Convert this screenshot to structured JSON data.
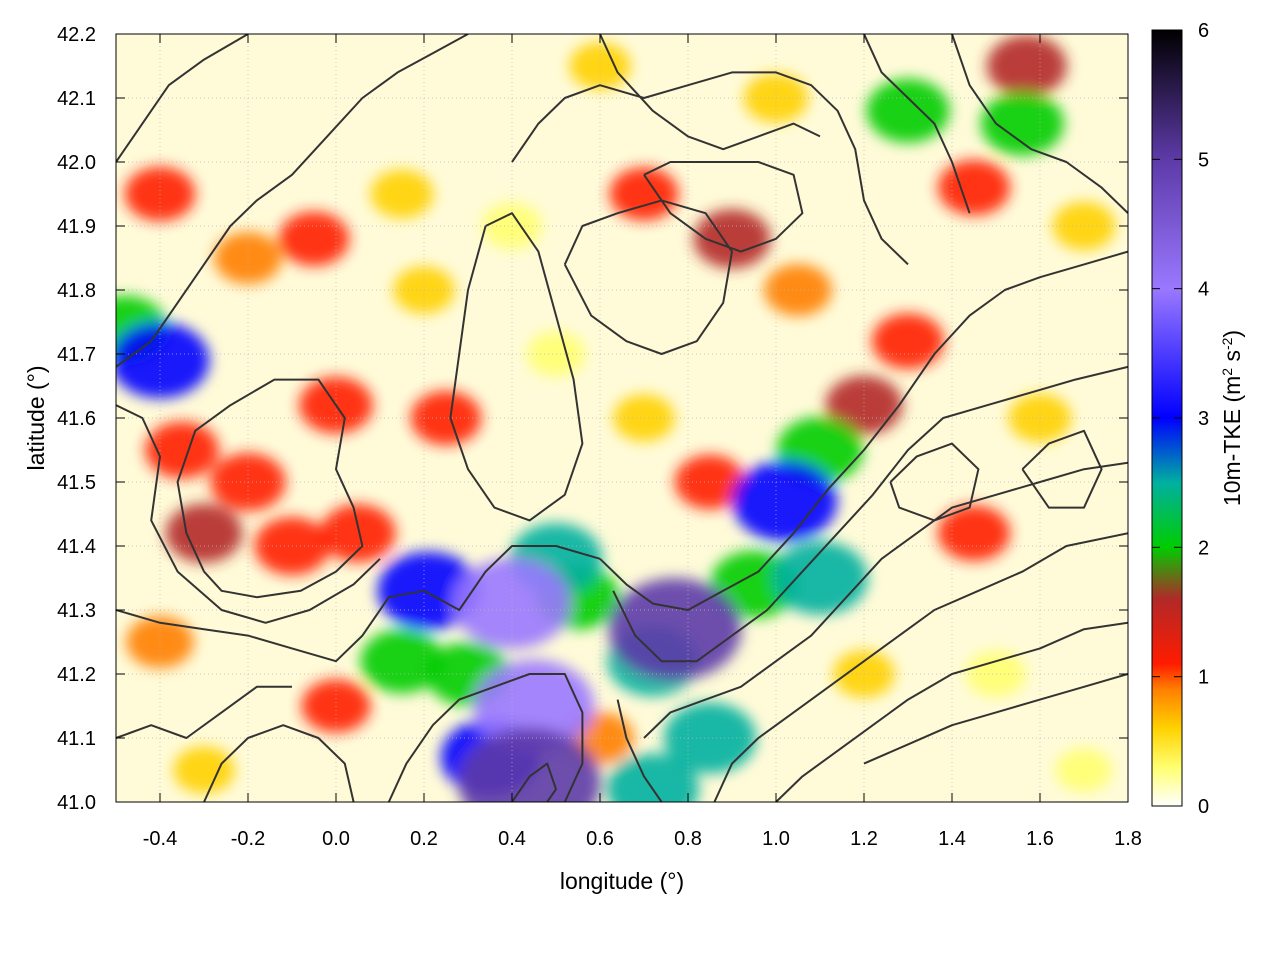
{
  "chart_data": {
    "type": "heatmap",
    "title": "",
    "xlabel": "longitude (°)",
    "ylabel": "latitude (°)",
    "xlim": [
      -0.5,
      1.8
    ],
    "ylim": [
      41.0,
      42.2
    ],
    "x_ticks": [
      "-0.4",
      "-0.2",
      "0.0",
      "0.2",
      "0.4",
      "0.6",
      "0.8",
      "1.0",
      "1.2",
      "1.4",
      "1.6",
      "1.8"
    ],
    "y_ticks": [
      "41.0",
      "41.1",
      "41.2",
      "41.3",
      "41.4",
      "41.5",
      "41.6",
      "41.7",
      "41.8",
      "41.9",
      "42.0",
      "42.1",
      "42.2"
    ],
    "grid": true,
    "colorbar": {
      "label_prefix": "10m-TKE (m",
      "label_sup1": "2",
      "label_mid": " s",
      "label_sup2": "-2",
      "label_suffix": ")",
      "range": [
        0,
        6
      ],
      "ticks": [
        "0",
        "1",
        "2",
        "3",
        "4",
        "5",
        "6"
      ],
      "palette": [
        {
          "value": 0.0,
          "color": "#ffffff"
        },
        {
          "value": 0.3,
          "color": "#ffff70"
        },
        {
          "value": 0.6,
          "color": "#ffd200"
        },
        {
          "value": 0.9,
          "color": "#ff8000"
        },
        {
          "value": 1.1,
          "color": "#ff1c00"
        },
        {
          "value": 1.6,
          "color": "#b22828"
        },
        {
          "value": 2.0,
          "color": "#00cc00"
        },
        {
          "value": 2.5,
          "color": "#00b0a0"
        },
        {
          "value": 3.0,
          "color": "#0000ff"
        },
        {
          "value": 4.0,
          "color": "#9a78ff"
        },
        {
          "value": 5.0,
          "color": "#5d3aa8"
        },
        {
          "value": 6.0,
          "color": "#000000"
        }
      ]
    },
    "features": [
      {
        "x": 0.44,
        "y": 41.03,
        "v": 5.8
      },
      {
        "x": 0.77,
        "y": 41.27,
        "v": 5.2
      },
      {
        "x": 0.45,
        "y": 41.15,
        "v": 4.4
      },
      {
        "x": 0.4,
        "y": 41.31,
        "v": 4.2
      },
      {
        "x": 1.02,
        "y": 41.47,
        "v": 3.4
      },
      {
        "x": 0.21,
        "y": 41.33,
        "v": 3.2
      },
      {
        "x": -0.4,
        "y": 41.69,
        "v": 3.0
      },
      {
        "x": 0.35,
        "y": 41.07,
        "v": 3.0
      },
      {
        "x": 1.1,
        "y": 41.35,
        "v": 2.8
      },
      {
        "x": 0.72,
        "y": 41.02,
        "v": 2.6
      },
      {
        "x": 0.85,
        "y": 41.1,
        "v": 2.6
      },
      {
        "x": 0.5,
        "y": 41.38,
        "v": 2.6
      },
      {
        "x": 0.72,
        "y": 41.22,
        "v": 2.5
      },
      {
        "x": 0.95,
        "y": 41.34,
        "v": 2.3
      },
      {
        "x": 1.1,
        "y": 41.55,
        "v": 2.2
      },
      {
        "x": -0.48,
        "y": 41.74,
        "v": 2.1
      },
      {
        "x": 0.15,
        "y": 41.22,
        "v": 2.0
      },
      {
        "x": 0.3,
        "y": 41.2,
        "v": 2.0
      },
      {
        "x": 0.55,
        "y": 41.32,
        "v": 2.0
      },
      {
        "x": 1.3,
        "y": 42.08,
        "v": 2.0
      },
      {
        "x": 1.56,
        "y": 42.06,
        "v": 2.0
      },
      {
        "x": 1.57,
        "y": 42.15,
        "v": 1.8
      },
      {
        "x": 0.9,
        "y": 41.88,
        "v": 1.6
      },
      {
        "x": -0.2,
        "y": 41.5,
        "v": 1.5
      },
      {
        "x": -0.3,
        "y": 41.42,
        "v": 1.6
      },
      {
        "x": -0.1,
        "y": 41.4,
        "v": 1.5
      },
      {
        "x": 0.0,
        "y": 41.62,
        "v": 1.4
      },
      {
        "x": -0.35,
        "y": 41.55,
        "v": 1.4
      },
      {
        "x": 0.05,
        "y": 41.42,
        "v": 1.5
      },
      {
        "x": 1.2,
        "y": 41.62,
        "v": 1.6
      },
      {
        "x": 1.3,
        "y": 41.72,
        "v": 1.3
      },
      {
        "x": 1.45,
        "y": 41.96,
        "v": 1.3
      },
      {
        "x": 1.45,
        "y": 41.42,
        "v": 1.3
      },
      {
        "x": -0.4,
        "y": 41.95,
        "v": 1.2
      },
      {
        "x": -0.2,
        "y": 41.85,
        "v": 1.0
      },
      {
        "x": -0.05,
        "y": 41.88,
        "v": 1.2
      },
      {
        "x": 0.7,
        "y": 41.95,
        "v": 1.1
      },
      {
        "x": 1.05,
        "y": 41.8,
        "v": 1.0
      },
      {
        "x": 0.25,
        "y": 41.6,
        "v": 1.2
      },
      {
        "x": 0.0,
        "y": 41.15,
        "v": 1.1
      },
      {
        "x": -0.4,
        "y": 41.25,
        "v": 1.0
      },
      {
        "x": 0.85,
        "y": 41.5,
        "v": 1.2
      },
      {
        "x": 0.6,
        "y": 41.1,
        "v": 1.0
      },
      {
        "x": 0.7,
        "y": 41.6,
        "v": 0.6
      },
      {
        "x": 0.5,
        "y": 41.7,
        "v": 0.4
      },
      {
        "x": 0.4,
        "y": 41.9,
        "v": 0.5
      },
      {
        "x": 0.2,
        "y": 41.8,
        "v": 0.6
      },
      {
        "x": 1.2,
        "y": 41.2,
        "v": 0.6
      },
      {
        "x": 1.5,
        "y": 41.2,
        "v": 0.5
      },
      {
        "x": 1.6,
        "y": 41.6,
        "v": 0.7
      },
      {
        "x": 0.6,
        "y": 42.15,
        "v": 0.6
      },
      {
        "x": 1.0,
        "y": 42.1,
        "v": 0.8
      },
      {
        "x": 1.7,
        "y": 41.9,
        "v": 0.7
      },
      {
        "x": -0.3,
        "y": 41.05,
        "v": 0.6
      },
      {
        "x": 0.15,
        "y": 41.95,
        "v": 0.7
      },
      {
        "x": 1.7,
        "y": 41.05,
        "v": 0.3
      }
    ],
    "contours": [
      [
        [
          0.6,
          41.38
        ],
        [
          0.66,
          41.34
        ],
        [
          0.72,
          41.31
        ],
        [
          0.8,
          41.3
        ],
        [
          0.88,
          41.33
        ],
        [
          0.96,
          41.36
        ],
        [
          1.04,
          41.42
        ],
        [
          1.12,
          41.49
        ],
        [
          1.2,
          41.55
        ],
        [
          1.28,
          41.62
        ],
        [
          1.36,
          41.7
        ],
        [
          1.44,
          41.76
        ],
        [
          1.52,
          41.8
        ],
        [
          1.6,
          41.82
        ],
        [
          1.7,
          41.84
        ],
        [
          1.8,
          41.86
        ]
      ],
      [
        [
          0.63,
          41.33
        ],
        [
          0.68,
          41.26
        ],
        [
          0.74,
          41.22
        ],
        [
          0.82,
          41.22
        ],
        [
          0.9,
          41.26
        ],
        [
          0.98,
          41.3
        ],
        [
          1.06,
          41.36
        ],
        [
          1.14,
          41.42
        ],
        [
          1.22,
          41.48
        ],
        [
          1.3,
          41.55
        ],
        [
          1.38,
          41.6
        ],
        [
          1.48,
          41.62
        ],
        [
          1.58,
          41.64
        ],
        [
          1.68,
          41.66
        ],
        [
          1.8,
          41.68
        ]
      ],
      [
        [
          0.7,
          41.1
        ],
        [
          0.76,
          41.14
        ],
        [
          0.84,
          41.16
        ],
        [
          0.92,
          41.18
        ],
        [
          1.0,
          41.22
        ],
        [
          1.08,
          41.26
        ],
        [
          1.16,
          41.32
        ],
        [
          1.24,
          41.38
        ],
        [
          1.32,
          41.42
        ],
        [
          1.4,
          41.46
        ],
        [
          1.5,
          41.48
        ],
        [
          1.6,
          41.5
        ],
        [
          1.7,
          41.52
        ],
        [
          1.8,
          41.53
        ]
      ],
      [
        [
          0.86,
          41.0
        ],
        [
          0.9,
          41.06
        ],
        [
          0.96,
          41.1
        ],
        [
          1.04,
          41.14
        ],
        [
          1.12,
          41.18
        ],
        [
          1.2,
          41.22
        ],
        [
          1.28,
          41.26
        ],
        [
          1.36,
          41.3
        ],
        [
          1.46,
          41.33
        ],
        [
          1.56,
          41.36
        ],
        [
          1.66,
          41.4
        ],
        [
          1.8,
          41.42
        ]
      ],
      [
        [
          1.0,
          41.0
        ],
        [
          1.06,
          41.04
        ],
        [
          1.14,
          41.08
        ],
        [
          1.22,
          41.12
        ],
        [
          1.3,
          41.16
        ],
        [
          1.4,
          41.2
        ],
        [
          1.5,
          41.22
        ],
        [
          1.6,
          41.24
        ],
        [
          1.7,
          41.27
        ],
        [
          1.8,
          41.28
        ]
      ],
      [
        [
          1.2,
          41.06
        ],
        [
          1.3,
          41.09
        ],
        [
          1.4,
          41.12
        ],
        [
          1.5,
          41.14
        ],
        [
          1.6,
          41.16
        ],
        [
          1.7,
          41.18
        ],
        [
          1.8,
          41.2
        ]
      ],
      [
        [
          -0.5,
          41.3
        ],
        [
          -0.4,
          41.28
        ],
        [
          -0.3,
          41.27
        ],
        [
          -0.2,
          41.26
        ],
        [
          -0.1,
          41.24
        ],
        [
          0.0,
          41.22
        ],
        [
          0.06,
          41.26
        ],
        [
          0.12,
          41.32
        ],
        [
          0.2,
          41.33
        ],
        [
          0.28,
          41.3
        ],
        [
          0.34,
          41.36
        ],
        [
          0.4,
          41.4
        ],
        [
          0.5,
          41.4
        ],
        [
          0.6,
          41.38
        ]
      ],
      [
        [
          -0.3,
          41.36
        ],
        [
          -0.34,
          41.42
        ],
        [
          -0.36,
          41.5
        ],
        [
          -0.32,
          41.58
        ],
        [
          -0.24,
          41.62
        ],
        [
          -0.14,
          41.66
        ],
        [
          -0.04,
          41.66
        ],
        [
          0.02,
          41.6
        ],
        [
          0.0,
          41.52
        ],
        [
          0.04,
          41.46
        ],
        [
          0.06,
          41.4
        ],
        [
          0.0,
          41.36
        ],
        [
          -0.08,
          41.33
        ],
        [
          -0.18,
          41.32
        ],
        [
          -0.26,
          41.33
        ],
        [
          -0.3,
          41.36
        ]
      ],
      [
        [
          -0.5,
          41.62
        ],
        [
          -0.44,
          41.6
        ],
        [
          -0.4,
          41.54
        ],
        [
          -0.42,
          41.44
        ],
        [
          -0.36,
          41.36
        ],
        [
          -0.26,
          41.3
        ],
        [
          -0.16,
          41.28
        ],
        [
          -0.06,
          41.3
        ],
        [
          0.04,
          41.34
        ],
        [
          0.1,
          41.38
        ]
      ],
      [
        [
          -0.5,
          41.68
        ],
        [
          -0.42,
          41.72
        ],
        [
          -0.36,
          41.78
        ],
        [
          -0.3,
          41.84
        ],
        [
          -0.24,
          41.9
        ],
        [
          -0.18,
          41.94
        ],
        [
          -0.1,
          41.98
        ],
        [
          -0.02,
          42.04
        ],
        [
          0.06,
          42.1
        ],
        [
          0.14,
          42.14
        ],
        [
          0.22,
          42.17
        ],
        [
          0.3,
          42.2
        ]
      ],
      [
        [
          -0.5,
          42.0
        ],
        [
          -0.44,
          42.06
        ],
        [
          -0.38,
          42.12
        ],
        [
          -0.3,
          42.16
        ],
        [
          -0.2,
          42.2
        ]
      ],
      [
        [
          0.34,
          41.9
        ],
        [
          0.3,
          41.8
        ],
        [
          0.28,
          41.7
        ],
        [
          0.26,
          41.6
        ],
        [
          0.3,
          41.52
        ],
        [
          0.36,
          41.46
        ],
        [
          0.44,
          41.44
        ],
        [
          0.52,
          41.48
        ],
        [
          0.56,
          41.56
        ],
        [
          0.54,
          41.66
        ],
        [
          0.5,
          41.76
        ],
        [
          0.46,
          41.86
        ],
        [
          0.4,
          41.92
        ],
        [
          0.34,
          41.9
        ]
      ],
      [
        [
          0.52,
          41.84
        ],
        [
          0.58,
          41.76
        ],
        [
          0.66,
          41.72
        ],
        [
          0.74,
          41.7
        ],
        [
          0.82,
          41.72
        ],
        [
          0.88,
          41.78
        ],
        [
          0.9,
          41.86
        ],
        [
          0.84,
          41.92
        ],
        [
          0.74,
          41.94
        ],
        [
          0.64,
          41.92
        ],
        [
          0.56,
          41.9
        ],
        [
          0.52,
          41.84
        ]
      ],
      [
        [
          0.4,
          42.0
        ],
        [
          0.46,
          42.06
        ],
        [
          0.52,
          42.1
        ],
        [
          0.6,
          42.12
        ],
        [
          0.7,
          42.1
        ],
        [
          0.8,
          42.12
        ],
        [
          0.9,
          42.14
        ],
        [
          1.0,
          42.14
        ],
        [
          1.08,
          42.12
        ],
        [
          1.14,
          42.08
        ],
        [
          1.18,
          42.02
        ],
        [
          1.2,
          41.94
        ],
        [
          1.24,
          41.88
        ],
        [
          1.3,
          41.84
        ]
      ],
      [
        [
          0.6,
          42.2
        ],
        [
          0.64,
          42.14
        ],
        [
          0.72,
          42.08
        ],
        [
          0.8,
          42.04
        ],
        [
          0.88,
          42.02
        ],
        [
          0.96,
          42.04
        ],
        [
          1.04,
          42.06
        ],
        [
          1.1,
          42.04
        ]
      ],
      [
        [
          1.4,
          42.2
        ],
        [
          1.44,
          42.12
        ],
        [
          1.5,
          42.06
        ],
        [
          1.58,
          42.02
        ],
        [
          1.66,
          42.0
        ],
        [
          1.74,
          41.96
        ],
        [
          1.8,
          41.92
        ]
      ],
      [
        [
          1.2,
          42.2
        ],
        [
          1.24,
          42.14
        ],
        [
          1.3,
          42.1
        ],
        [
          1.36,
          42.06
        ],
        [
          1.4,
          42.0
        ],
        [
          1.44,
          41.92
        ]
      ],
      [
        [
          0.7,
          41.98
        ],
        [
          0.76,
          41.92
        ],
        [
          0.84,
          41.88
        ],
        [
          0.92,
          41.86
        ],
        [
          1.0,
          41.88
        ],
        [
          1.06,
          41.92
        ],
        [
          1.04,
          41.98
        ],
        [
          0.96,
          42.0
        ],
        [
          0.86,
          42.0
        ],
        [
          0.76,
          42.0
        ],
        [
          0.7,
          41.98
        ]
      ],
      [
        [
          0.12,
          41.0
        ],
        [
          0.16,
          41.06
        ],
        [
          0.22,
          41.12
        ],
        [
          0.28,
          41.16
        ],
        [
          0.36,
          41.18
        ],
        [
          0.44,
          41.2
        ],
        [
          0.52,
          41.2
        ],
        [
          0.56,
          41.14
        ],
        [
          0.56,
          41.06
        ],
        [
          0.52,
          41.0
        ]
      ],
      [
        [
          0.4,
          41.0
        ],
        [
          0.44,
          41.04
        ],
        [
          0.48,
          41.06
        ],
        [
          0.5,
          41.02
        ],
        [
          0.48,
          41.0
        ]
      ],
      [
        [
          -0.3,
          41.0
        ],
        [
          -0.26,
          41.06
        ],
        [
          -0.2,
          41.1
        ],
        [
          -0.12,
          41.12
        ],
        [
          -0.04,
          41.1
        ],
        [
          0.02,
          41.06
        ],
        [
          0.04,
          41.0
        ]
      ],
      [
        [
          -0.5,
          41.1
        ],
        [
          -0.42,
          41.12
        ],
        [
          -0.34,
          41.1
        ],
        [
          -0.26,
          41.14
        ],
        [
          -0.18,
          41.18
        ],
        [
          -0.1,
          41.18
        ]
      ],
      [
        [
          0.64,
          41.16
        ],
        [
          0.66,
          41.1
        ],
        [
          0.7,
          41.04
        ],
        [
          0.74,
          41.0
        ]
      ],
      [
        [
          1.26,
          41.5
        ],
        [
          1.32,
          41.54
        ],
        [
          1.4,
          41.56
        ],
        [
          1.46,
          41.52
        ],
        [
          1.44,
          41.46
        ],
        [
          1.36,
          41.44
        ],
        [
          1.28,
          41.46
        ],
        [
          1.26,
          41.5
        ]
      ],
      [
        [
          1.56,
          41.52
        ],
        [
          1.62,
          41.56
        ],
        [
          1.7,
          41.58
        ],
        [
          1.74,
          41.52
        ],
        [
          1.7,
          41.46
        ],
        [
          1.62,
          41.46
        ],
        [
          1.56,
          41.52
        ]
      ]
    ]
  }
}
